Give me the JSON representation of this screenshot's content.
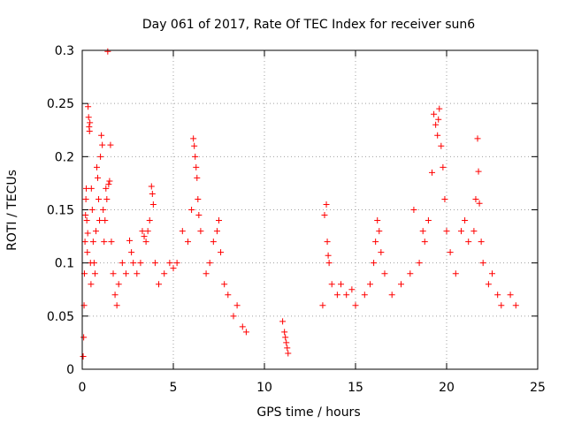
{
  "chart_data": {
    "type": "scatter",
    "title": "Day 061 of 2017, Rate Of TEC Index for receiver sun6",
    "xlabel": "GPS time / hours",
    "ylabel": "ROTI / TECUs",
    "xlim": [
      0,
      25
    ],
    "ylim": [
      0,
      0.3
    ],
    "x_ticks": [
      0,
      5,
      10,
      15,
      20,
      25
    ],
    "x_tick_labels": [
      "0",
      "5",
      "10",
      "15",
      "20",
      "25"
    ],
    "y_ticks": [
      0,
      0.05,
      0.1,
      0.15,
      0.2,
      0.25,
      0.3
    ],
    "y_tick_labels": [
      "0",
      "0.05",
      "0.1",
      "0.15",
      "0.2",
      "0.25",
      "0.3"
    ],
    "grid": true,
    "marker": "+",
    "marker_color": "#ff0000",
    "series": [
      {
        "name": "ROTI",
        "points": [
          [
            0.05,
            0.012
          ],
          [
            0.08,
            0.03
          ],
          [
            0.1,
            0.06
          ],
          [
            0.12,
            0.09
          ],
          [
            0.15,
            0.12
          ],
          [
            0.18,
            0.145
          ],
          [
            0.2,
            0.16
          ],
          [
            0.22,
            0.17
          ],
          [
            0.25,
            0.14
          ],
          [
            0.28,
            0.11
          ],
          [
            0.3,
            0.128
          ],
          [
            0.32,
            0.247
          ],
          [
            0.35,
            0.237
          ],
          [
            0.38,
            0.228
          ],
          [
            0.4,
            0.224
          ],
          [
            0.42,
            0.232
          ],
          [
            0.45,
            0.1
          ],
          [
            0.48,
            0.08
          ],
          [
            0.5,
            0.17
          ],
          [
            0.55,
            0.15
          ],
          [
            0.6,
            0.12
          ],
          [
            0.65,
            0.1
          ],
          [
            0.7,
            0.09
          ],
          [
            0.75,
            0.13
          ],
          [
            0.8,
            0.19
          ],
          [
            0.85,
            0.18
          ],
          [
            0.9,
            0.16
          ],
          [
            0.95,
            0.14
          ],
          [
            1.0,
            0.2
          ],
          [
            1.05,
            0.22
          ],
          [
            1.1,
            0.211
          ],
          [
            1.15,
            0.15
          ],
          [
            1.2,
            0.12
          ],
          [
            1.25,
            0.14
          ],
          [
            1.3,
            0.17
          ],
          [
            1.35,
            0.16
          ],
          [
            1.4,
            0.299
          ],
          [
            1.45,
            0.174
          ],
          [
            1.5,
            0.177
          ],
          [
            1.55,
            0.211
          ],
          [
            1.6,
            0.12
          ],
          [
            1.7,
            0.09
          ],
          [
            1.8,
            0.07
          ],
          [
            1.9,
            0.06
          ],
          [
            2.0,
            0.08
          ],
          [
            2.2,
            0.1
          ],
          [
            2.4,
            0.09
          ],
          [
            2.6,
            0.121
          ],
          [
            2.7,
            0.11
          ],
          [
            2.8,
            0.1
          ],
          [
            3.0,
            0.09
          ],
          [
            3.2,
            0.1
          ],
          [
            3.3,
            0.13
          ],
          [
            3.4,
            0.125
          ],
          [
            3.5,
            0.12
          ],
          [
            3.6,
            0.13
          ],
          [
            3.7,
            0.14
          ],
          [
            3.8,
            0.172
          ],
          [
            3.85,
            0.165
          ],
          [
            3.9,
            0.155
          ],
          [
            4.0,
            0.1
          ],
          [
            4.2,
            0.08
          ],
          [
            4.5,
            0.09
          ],
          [
            4.8,
            0.1
          ],
          [
            5.0,
            0.095
          ],
          [
            5.2,
            0.1
          ],
          [
            5.5,
            0.13
          ],
          [
            5.8,
            0.12
          ],
          [
            6.0,
            0.15
          ],
          [
            6.1,
            0.217
          ],
          [
            6.15,
            0.21
          ],
          [
            6.2,
            0.2
          ],
          [
            6.25,
            0.19
          ],
          [
            6.3,
            0.18
          ],
          [
            6.35,
            0.16
          ],
          [
            6.4,
            0.145
          ],
          [
            6.5,
            0.13
          ],
          [
            6.8,
            0.09
          ],
          [
            7.0,
            0.1
          ],
          [
            7.2,
            0.12
          ],
          [
            7.4,
            0.13
          ],
          [
            7.5,
            0.14
          ],
          [
            7.6,
            0.11
          ],
          [
            7.8,
            0.08
          ],
          [
            8.0,
            0.07
          ],
          [
            8.3,
            0.05
          ],
          [
            8.5,
            0.06
          ],
          [
            8.8,
            0.04
          ],
          [
            9.0,
            0.035
          ],
          [
            11.0,
            0.045
          ],
          [
            11.1,
            0.035
          ],
          [
            11.15,
            0.03
          ],
          [
            11.2,
            0.025
          ],
          [
            11.25,
            0.02
          ],
          [
            11.3,
            0.015
          ],
          [
            13.2,
            0.06
          ],
          [
            13.3,
            0.145
          ],
          [
            13.4,
            0.155
          ],
          [
            13.45,
            0.12
          ],
          [
            13.5,
            0.107
          ],
          [
            13.55,
            0.1
          ],
          [
            13.7,
            0.08
          ],
          [
            14.0,
            0.07
          ],
          [
            14.2,
            0.08
          ],
          [
            14.5,
            0.07
          ],
          [
            14.8,
            0.075
          ],
          [
            15.0,
            0.06
          ],
          [
            15.5,
            0.07
          ],
          [
            15.8,
            0.08
          ],
          [
            16.0,
            0.1
          ],
          [
            16.1,
            0.12
          ],
          [
            16.2,
            0.14
          ],
          [
            16.3,
            0.13
          ],
          [
            16.4,
            0.11
          ],
          [
            16.6,
            0.09
          ],
          [
            17.0,
            0.07
          ],
          [
            17.5,
            0.08
          ],
          [
            18.0,
            0.09
          ],
          [
            18.2,
            0.15
          ],
          [
            18.5,
            0.1
          ],
          [
            18.7,
            0.13
          ],
          [
            18.8,
            0.12
          ],
          [
            19.0,
            0.14
          ],
          [
            19.2,
            0.185
          ],
          [
            19.3,
            0.24
          ],
          [
            19.4,
            0.23
          ],
          [
            19.5,
            0.22
          ],
          [
            19.55,
            0.235
          ],
          [
            19.6,
            0.245
          ],
          [
            19.7,
            0.21
          ],
          [
            19.8,
            0.19
          ],
          [
            19.9,
            0.16
          ],
          [
            20.0,
            0.13
          ],
          [
            20.2,
            0.11
          ],
          [
            20.5,
            0.09
          ],
          [
            20.8,
            0.13
          ],
          [
            21.0,
            0.14
          ],
          [
            21.2,
            0.12
          ],
          [
            21.5,
            0.13
          ],
          [
            21.6,
            0.16
          ],
          [
            21.7,
            0.217
          ],
          [
            21.75,
            0.186
          ],
          [
            21.8,
            0.156
          ],
          [
            21.9,
            0.12
          ],
          [
            22.0,
            0.1
          ],
          [
            22.3,
            0.08
          ],
          [
            22.5,
            0.09
          ],
          [
            22.8,
            0.07
          ],
          [
            23.0,
            0.06
          ],
          [
            23.5,
            0.07
          ],
          [
            23.8,
            0.06
          ]
        ]
      }
    ]
  }
}
